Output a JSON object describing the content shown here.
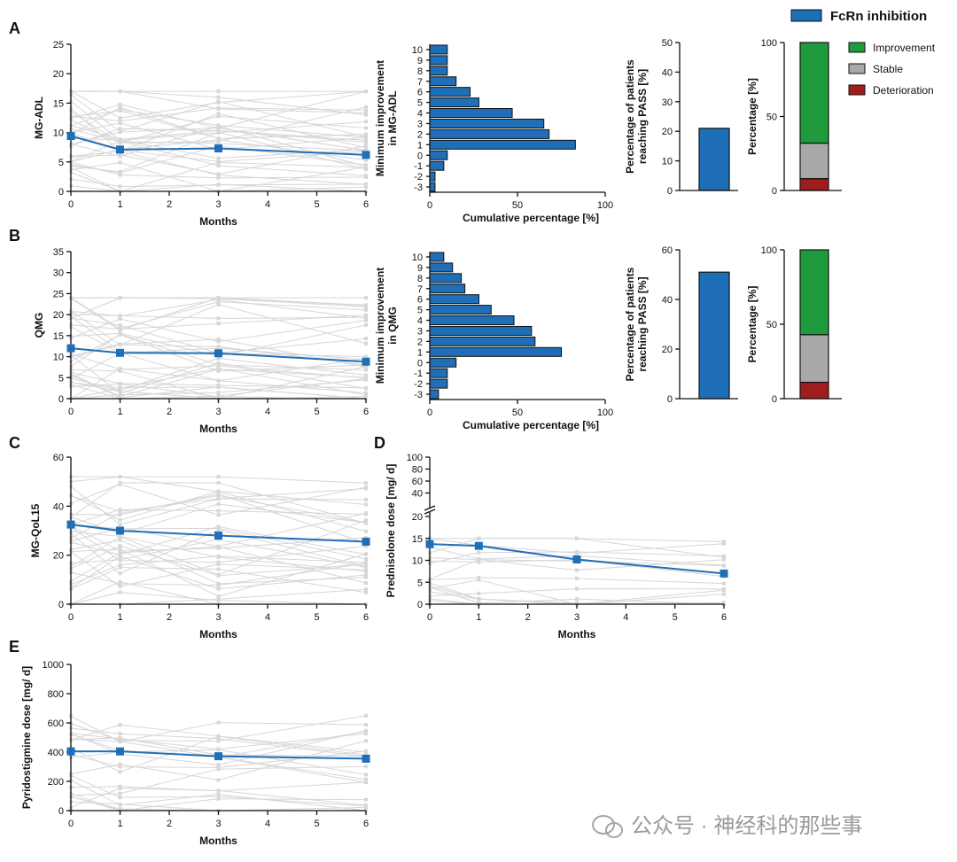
{
  "colors": {
    "main": "#1f6fb8",
    "individual": "#d6d6d6",
    "bar": "#1f6fb8",
    "improvement": "#1f9a3c",
    "stable": "#a9a9a9",
    "deterioration": "#a11d1d"
  },
  "legend_top": {
    "label": "FcRn inhibition"
  },
  "legend_stack": {
    "items": [
      "Improvement",
      "Stable",
      "Deterioration"
    ]
  },
  "panel_letters": [
    "A",
    "B",
    "C",
    "D",
    "E"
  ],
  "watermark": "公众号 · 神经科的那些事",
  "chart_data": [
    {
      "id": "A-line",
      "type": "line",
      "xlabel": "Months",
      "ylabel": "MG-ADL",
      "x": [
        0,
        1,
        3,
        6
      ],
      "xticks": [
        0,
        1,
        2,
        3,
        4,
        5,
        6
      ],
      "xlim": [
        0,
        6
      ],
      "ylim": [
        0,
        25
      ],
      "yticks": [
        0,
        5,
        10,
        15,
        20,
        25
      ],
      "series": [
        {
          "values": [
            9.4,
            7.1,
            7.3,
            6.2
          ]
        }
      ]
    },
    {
      "id": "A-hbar",
      "type": "bar",
      "orientation": "horizontal",
      "xlabel": "Cumulative percentage [%]",
      "ylabel": "Minimum improvement\nin MG-ADL",
      "categories": [
        "10",
        "9",
        "8",
        "7",
        "6",
        "5",
        "4",
        "3",
        "2",
        "1",
        "0",
        "-1",
        "-2",
        "-3"
      ],
      "values": [
        10,
        10,
        10,
        15,
        23,
        28,
        47,
        65,
        68,
        83,
        10,
        8,
        3,
        3
      ],
      "xlim": [
        0,
        100
      ],
      "xticks": [
        0,
        50,
        100
      ]
    },
    {
      "id": "A-pass",
      "type": "bar",
      "ylabel": "Percentage of patients\nreaching PASS [%]",
      "categories": [
        ""
      ],
      "values": [
        21
      ],
      "ylim": [
        0,
        50
      ],
      "yticks": [
        0,
        10,
        20,
        30,
        40,
        50
      ]
    },
    {
      "id": "A-stack",
      "type": "bar",
      "stacked": true,
      "ylabel": "Percentage [%]",
      "categories": [
        ""
      ],
      "series": [
        {
          "name": "Deterioration",
          "values": [
            8
          ]
        },
        {
          "name": "Stable",
          "values": [
            24
          ]
        },
        {
          "name": "Improvement",
          "values": [
            68
          ]
        }
      ],
      "ylim": [
        0,
        100
      ],
      "yticks": [
        0,
        50,
        100
      ]
    },
    {
      "id": "B-line",
      "type": "line",
      "xlabel": "Months",
      "ylabel": "QMG",
      "x": [
        0,
        1,
        3,
        6
      ],
      "xticks": [
        0,
        1,
        2,
        3,
        4,
        5,
        6
      ],
      "xlim": [
        0,
        6
      ],
      "ylim": [
        0,
        35
      ],
      "yticks": [
        0,
        5,
        10,
        15,
        20,
        25,
        30,
        35
      ],
      "series": [
        {
          "values": [
            12.0,
            10.9,
            10.8,
            8.8
          ]
        }
      ]
    },
    {
      "id": "B-hbar",
      "type": "bar",
      "orientation": "horizontal",
      "xlabel": "Cumulative percentage [%]",
      "ylabel": "Minimum improvement\nin QMG",
      "categories": [
        "10",
        "9",
        "8",
        "7",
        "6",
        "5",
        "4",
        "3",
        "2",
        "1",
        "0",
        "-1",
        "-2",
        "-3"
      ],
      "values": [
        8,
        13,
        18,
        20,
        28,
        35,
        48,
        58,
        60,
        75,
        15,
        10,
        10,
        5
      ],
      "xlim": [
        0,
        100
      ],
      "xticks": [
        0,
        50,
        100
      ]
    },
    {
      "id": "B-pass",
      "type": "bar",
      "ylabel": "Percentage of patients\nreaching PASS [%]",
      "categories": [
        ""
      ],
      "values": [
        51
      ],
      "ylim": [
        0,
        60
      ],
      "yticks": [
        0,
        20,
        40,
        60
      ]
    },
    {
      "id": "B-stack",
      "type": "bar",
      "stacked": true,
      "ylabel": "Percentage [%]",
      "categories": [
        ""
      ],
      "series": [
        {
          "name": "Deterioration",
          "values": [
            11
          ]
        },
        {
          "name": "Stable",
          "values": [
            32
          ]
        },
        {
          "name": "Improvement",
          "values": [
            57
          ]
        }
      ],
      "ylim": [
        0,
        100
      ],
      "yticks": [
        0,
        50,
        100
      ]
    },
    {
      "id": "C-line",
      "type": "line",
      "xlabel": "Months",
      "ylabel": "MG-QoL15",
      "x": [
        0,
        1,
        3,
        6
      ],
      "xticks": [
        0,
        1,
        2,
        3,
        4,
        5,
        6
      ],
      "xlim": [
        0,
        6
      ],
      "ylim": [
        0,
        60
      ],
      "yticks": [
        0,
        20,
        40,
        60
      ],
      "series": [
        {
          "values": [
            32.5,
            30.0,
            28.0,
            25.5
          ]
        }
      ]
    },
    {
      "id": "D-line",
      "type": "line",
      "xlabel": "Months",
      "ylabel": "Prednisolone dose [mg/ d]",
      "x": [
        0,
        1,
        3,
        6
      ],
      "xticks": [
        0,
        1,
        2,
        3,
        4,
        5,
        6
      ],
      "xlim": [
        0,
        6
      ],
      "ylim": [
        0,
        20
      ],
      "yticks": [
        0,
        5,
        10,
        15,
        20
      ],
      "ylim_upper": [
        20,
        100
      ],
      "yticks_upper": [
        20,
        40,
        60,
        80,
        100
      ],
      "series": [
        {
          "values": [
            13.7,
            13.3,
            10.2,
            7.0
          ]
        }
      ]
    },
    {
      "id": "E-line",
      "type": "line",
      "xlabel": "Months",
      "ylabel": "Pyridostigmine dose [mg/ d]",
      "x": [
        0,
        1,
        3,
        6
      ],
      "xticks": [
        0,
        1,
        2,
        3,
        4,
        5,
        6
      ],
      "xlim": [
        0,
        6
      ],
      "ylim": [
        0,
        1000
      ],
      "yticks": [
        0,
        200,
        400,
        600,
        800,
        1000
      ],
      "series": [
        {
          "values": [
            405,
            405,
            372,
            355
          ]
        }
      ]
    }
  ]
}
